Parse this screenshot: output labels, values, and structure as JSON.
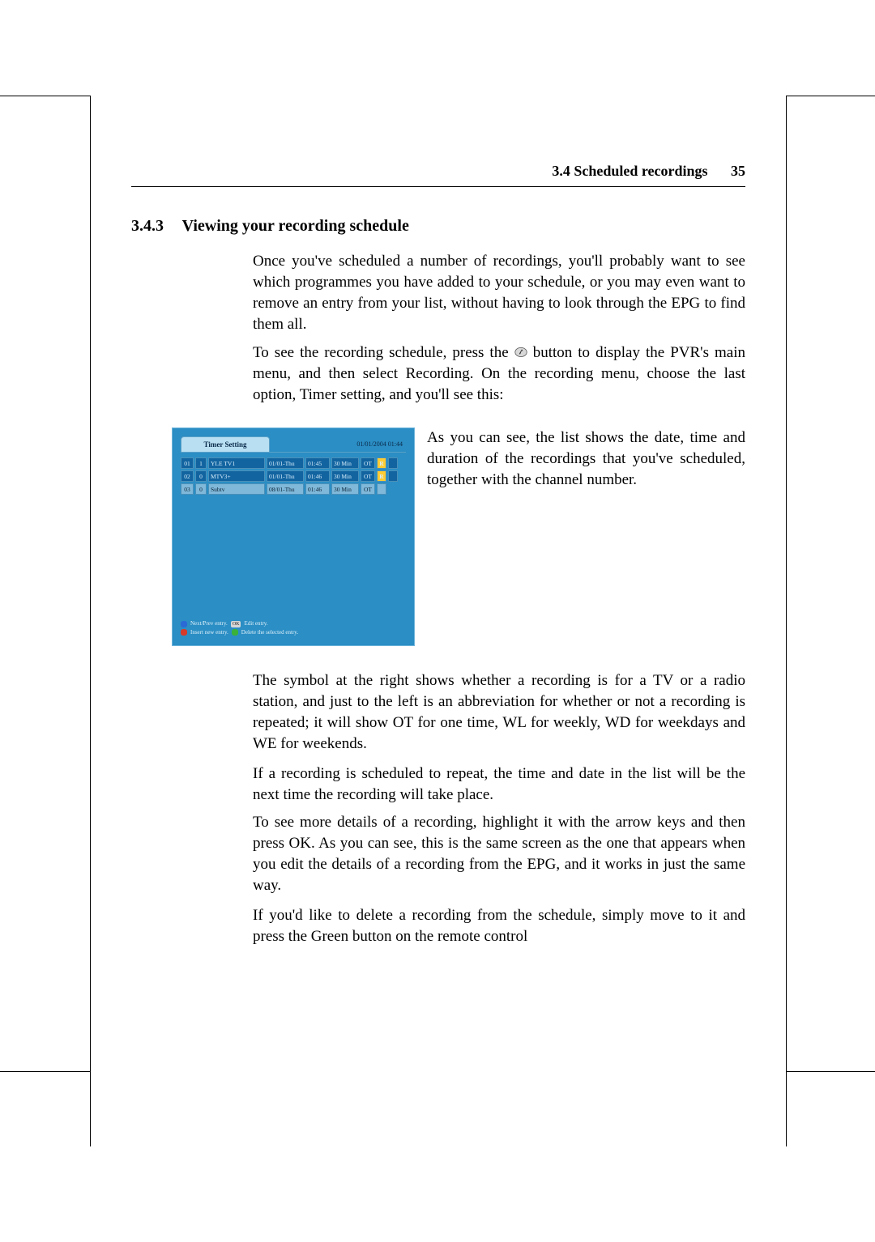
{
  "header": {
    "section_label": "3.4 Scheduled recordings",
    "page_number": "35"
  },
  "section": {
    "number": "3.4.3",
    "title": "Viewing your recording schedule"
  },
  "paragraphs": {
    "p1": "Once you've scheduled a number of recordings, you'll probably want to see which programmes you have added to your schedule, or you may even want to remove an entry from your list, without having to look through the EPG to find them all.",
    "p2a": "To see the recording schedule, press the ",
    "p2b": " button to display the PVR's main menu, and then select Recording. On the recording menu, choose the last option, Timer setting, and you'll see this:",
    "pside": "As you can see, the list shows the date, time and duration of the recordings that you've scheduled, together with the channel number.",
    "p3": "The symbol at the right shows whether a recording is for a TV or a radio station, and just to the left is an abbreviation for whether or not a recording is repeated; it will show OT for one time, WL for weekly, WD for weekdays and WE for weekends.",
    "p4": "If a recording is scheduled to repeat, the time and date in the list will be the next time the recording will take place.",
    "p5": "To see more details of a recording, highlight it with the arrow keys and then press OK. As you can see, this is the same screen as the one that appears when you edit the details of a recording from the EPG, and it works in just the same way.",
    "p6": "If you'd like to delete a recording from the schedule, simply move to it and press the Green button on the remote control"
  },
  "figure": {
    "title": "Timer Setting",
    "clock": "01/01/2004 01:44",
    "background_color": "#2b8ec4",
    "tab_bg": "#b9e0f2",
    "row_sel_bg": "#1264a0",
    "row_nsel_bg": "#7fb8d9",
    "flag_bg": "#ffcc33",
    "rows": [
      {
        "idx": "01",
        "ch": "1",
        "name": "YLE TV1",
        "date": "01/01-Thu",
        "time": "01:45",
        "dur": "30 Min",
        "rep": "OT",
        "flag": "R",
        "selected": true
      },
      {
        "idx": "02",
        "ch": "0",
        "name": "MTV3+",
        "date": "01/01-Thu",
        "time": "01:46",
        "dur": "30 Min",
        "rep": "OT",
        "flag": "R",
        "selected": true
      },
      {
        "idx": "03",
        "ch": "0",
        "name": "Subtv",
        "date": "08/01-Thu",
        "time": "01:46",
        "dur": "30 Min",
        "rep": "OT",
        "flag": "",
        "selected": false
      }
    ],
    "legend": {
      "l1a": "Next/Prev entry.",
      "l1_ok": "OK",
      "l1b": "Edit entry.",
      "l2a": "Insert new entry.",
      "l2b": "Delete the selected entry."
    }
  },
  "icon": {
    "remote_oval_fill": "#d8d8d8",
    "remote_oval_stroke": "#555",
    "remote_glyph": "#333"
  }
}
